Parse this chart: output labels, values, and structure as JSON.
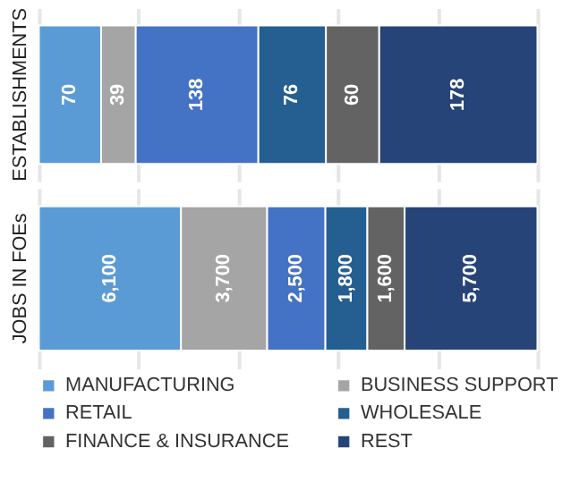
{
  "chart_data": [
    {
      "type": "bar",
      "orientation": "horizontal",
      "stacked": true,
      "categories": [
        "ESTABLISHMENTS"
      ],
      "xlim": [
        0,
        561
      ],
      "xticks": [
        {
          "value": 0,
          "label": null
        },
        {
          "value": 112.2,
          "label": null
        },
        {
          "value": 224.4,
          "label": null
        },
        {
          "value": 336.6,
          "label": null
        },
        {
          "value": 448.8,
          "label": null
        },
        {
          "value": 561,
          "label": null
        }
      ],
      "grid": "x",
      "tick_labels": "y",
      "data_labels": true,
      "legend": false,
      "series": [
        {
          "color": "#5b9bd5",
          "values": [
            70
          ]
        },
        {
          "color": "#a5a5a5",
          "values": [
            39
          ]
        },
        {
          "color": "#4472c4",
          "values": [
            138
          ]
        },
        {
          "color": "#255e91",
          "values": [
            76
          ]
        },
        {
          "color": "#636363",
          "values": [
            60
          ]
        },
        {
          "color": "#264478",
          "values": [
            178
          ]
        }
      ]
    },
    {
      "type": "bar",
      "orientation": "horizontal",
      "stacked": true,
      "categories": [
        "JOBS IN FOEs"
      ],
      "xlim": [
        0,
        21400
      ],
      "xticks": [
        {
          "value": 0,
          "label": null
        },
        {
          "value": 4280,
          "label": null
        },
        {
          "value": 8560,
          "label": null
        },
        {
          "value": 12840,
          "label": null
        },
        {
          "value": 17120,
          "label": null
        },
        {
          "value": 21400,
          "label": null
        }
      ],
      "grid": "x",
      "tick_labels": "y",
      "legend": "bottom",
      "series": [
        {
          "name": "MANUFACTURING",
          "color": "#5b9bd5",
          "values": [
            6100
          ],
          "value_labels": [
            "6,100"
          ]
        },
        {
          "name": "BUSINESS  SUPPORT",
          "color": "#a5a5a5",
          "values": [
            3700
          ],
          "value_labels": [
            "3,700"
          ]
        },
        {
          "name": "RETAIL",
          "color": "#4472c4",
          "values": [
            2500
          ],
          "value_labels": [
            "2,500"
          ]
        },
        {
          "name": "WHOLESALE",
          "color": "#255e91",
          "values": [
            1800
          ],
          "value_labels": [
            "1,800"
          ]
        },
        {
          "name": "FINANCE  & INSURANCE",
          "color": "#636363",
          "values": [
            1600
          ],
          "value_labels": [
            "1,600"
          ]
        },
        {
          "name": "REST",
          "color": "#264478",
          "values": [
            5700
          ],
          "value_labels": [
            "5,700"
          ]
        }
      ]
    }
  ]
}
